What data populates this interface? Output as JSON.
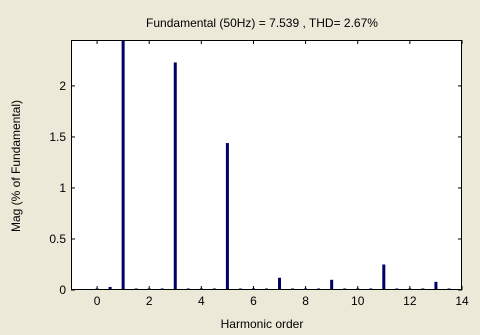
{
  "chart_data": {
    "type": "bar",
    "title": "Fundamental (50Hz) = 7.539 , THD= 2.67%",
    "xlabel": "Harmonic order",
    "ylabel": "Mag (% of Fundamental)",
    "xlim": [
      -1,
      14
    ],
    "ylim": [
      0,
      2.45
    ],
    "xticks": [
      "0",
      "2",
      "4",
      "6",
      "8",
      "10",
      "12",
      "14"
    ],
    "yticks": [
      "0",
      "0.5",
      "1",
      "1.5",
      "2"
    ],
    "grid": false,
    "legend": "none",
    "bar_color": "#000066",
    "x": [
      0,
      0.5,
      1,
      1.5,
      2,
      2.5,
      3,
      3.5,
      4,
      4.5,
      5,
      5.5,
      6,
      6.5,
      7,
      7.5,
      8,
      8.5,
      9,
      9.5,
      10,
      10.5,
      11,
      11.5,
      12,
      12.5,
      13,
      13.5
    ],
    "values": [
      0.01,
      0.03,
      2.45,
      0.01,
      0.01,
      0.01,
      2.23,
      0.01,
      0.01,
      0.01,
      1.44,
      0.01,
      0.01,
      0.01,
      0.12,
      0.01,
      0.01,
      0.01,
      0.1,
      0.01,
      0.01,
      0.01,
      0.25,
      0.01,
      0.01,
      0.01,
      0.08,
      0.01
    ]
  }
}
